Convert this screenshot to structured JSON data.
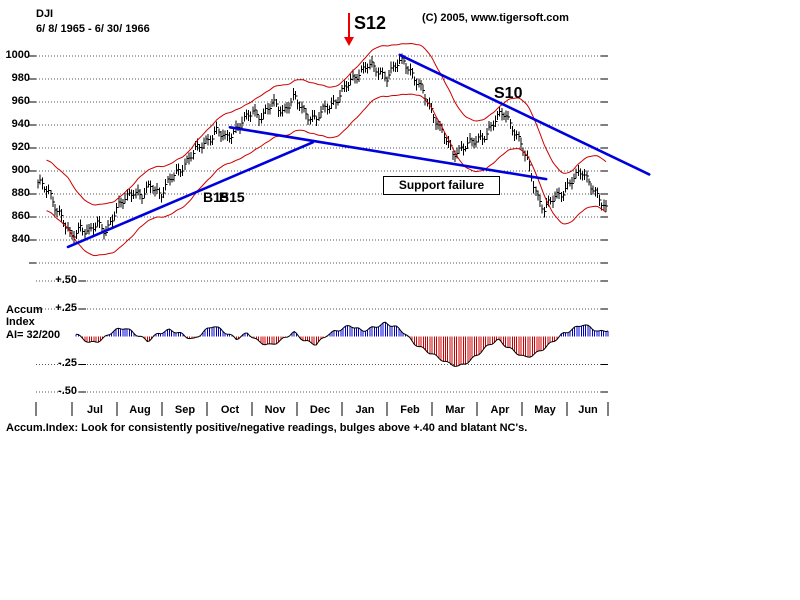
{
  "header": {
    "symbol": "DJI",
    "date_range": "6/ 8/ 1965 - 6/ 30/ 1966",
    "copyright": "(C) 2005, www.tigersoft.com"
  },
  "annotations": {
    "s12": "S12",
    "s10": "S10",
    "b15_first": "B15",
    "b15_second": "B15",
    "support_failure": "Support failure"
  },
  "accum_block": {
    "line1": "Accum",
    "line2": "Index",
    "line3": "AI= 32/200"
  },
  "footer_note": "Accum.Index: Look for consistently positive/negative readings, bulges above +.40 and blatant NC's.",
  "colors": {
    "price": "#000000",
    "bands": "#cc0000",
    "trendline": "#0000dd",
    "accum_positive": "#0000cc",
    "accum_negative": "#cc0000",
    "arrow": "#ee0000",
    "grid": "#555555"
  },
  "chart_data": [
    {
      "name": "price-panel",
      "type": "line",
      "style_note": "Daily OHLC-style vertical bars with red envelope bands and blue hand-drawn trendlines; sell signals S12/S10, buy signals B15, 'Support failure' callout",
      "title": "DJI",
      "period": "6/ 8/ 1965 - 6/ 30/ 1966",
      "ylim": [
        830,
        1007
      ],
      "y_ticks": [
        1000,
        980,
        960,
        940,
        920,
        900,
        880,
        860,
        840
      ],
      "y_tick_labels": [
        "1000",
        "980",
        "960",
        "940",
        "920",
        "900",
        "880",
        "860",
        "840"
      ],
      "grid_values": [
        1000,
        980,
        960,
        940,
        920,
        900,
        880,
        860,
        840,
        820
      ],
      "x_tick_labels": [
        "Jul",
        "Aug",
        "Sep",
        "Oct",
        "Nov",
        "Dec",
        "Jan",
        "Feb",
        "Mar",
        "Apr",
        "May",
        "Jun"
      ],
      "band_halfwidth": 22,
      "anchors": [
        [
          0.0,
          890
        ],
        [
          0.02,
          880
        ],
        [
          0.04,
          862
        ],
        [
          0.058,
          841
        ],
        [
          0.075,
          852
        ],
        [
          0.09,
          847
        ],
        [
          0.105,
          853
        ],
        [
          0.12,
          849
        ],
        [
          0.135,
          863
        ],
        [
          0.152,
          875
        ],
        [
          0.168,
          884
        ],
        [
          0.183,
          877
        ],
        [
          0.2,
          888
        ],
        [
          0.216,
          880
        ],
        [
          0.235,
          893
        ],
        [
          0.255,
          905
        ],
        [
          0.275,
          916
        ],
        [
          0.299,
          928
        ],
        [
          0.315,
          934
        ],
        [
          0.33,
          928
        ],
        [
          0.35,
          938
        ],
        [
          0.365,
          944
        ],
        [
          0.378,
          952
        ],
        [
          0.395,
          948
        ],
        [
          0.413,
          958
        ],
        [
          0.432,
          953
        ],
        [
          0.45,
          963
        ],
        [
          0.47,
          951
        ],
        [
          0.49,
          945
        ],
        [
          0.51,
          956
        ],
        [
          0.525,
          962
        ],
        [
          0.535,
          968
        ],
        [
          0.55,
          977
        ],
        [
          0.565,
          986
        ],
        [
          0.58,
          992
        ],
        [
          0.597,
          987
        ],
        [
          0.614,
          983
        ],
        [
          0.63,
          991
        ],
        [
          0.645,
          996
        ],
        [
          0.66,
          984
        ],
        [
          0.676,
          969
        ],
        [
          0.692,
          954
        ],
        [
          0.71,
          936
        ],
        [
          0.73,
          914
        ],
        [
          0.748,
          922
        ],
        [
          0.771,
          925
        ],
        [
          0.79,
          934
        ],
        [
          0.806,
          944
        ],
        [
          0.822,
          951
        ],
        [
          0.84,
          934
        ],
        [
          0.862,
          908
        ],
        [
          0.88,
          878
        ],
        [
          0.892,
          865
        ],
        [
          0.91,
          878
        ],
        [
          0.928,
          884
        ],
        [
          0.945,
          893
        ],
        [
          0.958,
          901
        ],
        [
          0.972,
          890
        ],
        [
          0.985,
          876
        ],
        [
          1.0,
          867
        ]
      ],
      "trendlines": [
        {
          "name": "rising-support-line",
          "t1": 0.056,
          "p1": 834,
          "t2": 0.484,
          "p2": 925
        },
        {
          "name": "failed-support-line",
          "t1": 0.339,
          "p1": 938,
          "t2": 0.892,
          "p2": 893
        },
        {
          "name": "falling-resistance-line",
          "t1": 0.636,
          "p1": 1001,
          "t2": 1.072,
          "p2": 897
        }
      ]
    },
    {
      "name": "accum-index-panel",
      "type": "area",
      "style_note": "Tiger Accumulation Index oscillator around zero; positive spikes blue, negative bulges red",
      "current_reading": "AI= 32/200",
      "ylim": [
        -0.55,
        0.55
      ],
      "y_ticks": [
        0.5,
        0.25,
        -0.25,
        -0.5
      ],
      "y_tick_labels": [
        "+.50",
        "+.25",
        "-.25",
        "-.50"
      ],
      "anchors": [
        [
          0.07,
          0.02
        ],
        [
          0.095,
          -0.06
        ],
        [
          0.115,
          -0.03
        ],
        [
          0.135,
          0.05
        ],
        [
          0.155,
          0.08
        ],
        [
          0.175,
          0.02
        ],
        [
          0.195,
          -0.04
        ],
        [
          0.215,
          0.03
        ],
        [
          0.235,
          0.06
        ],
        [
          0.255,
          0.02
        ],
        [
          0.275,
          -0.03
        ],
        [
          0.295,
          0.05
        ],
        [
          0.31,
          0.1
        ],
        [
          0.33,
          0.04
        ],
        [
          0.35,
          -0.02
        ],
        [
          0.37,
          0.03
        ],
        [
          0.39,
          -0.05
        ],
        [
          0.41,
          -0.08
        ],
        [
          0.43,
          -0.03
        ],
        [
          0.45,
          0.04
        ],
        [
          0.47,
          -0.04
        ],
        [
          0.49,
          -0.07
        ],
        [
          0.51,
          0.02
        ],
        [
          0.53,
          0.06
        ],
        [
          0.55,
          0.1
        ],
        [
          0.57,
          0.05
        ],
        [
          0.59,
          0.08
        ],
        [
          0.61,
          0.12
        ],
        [
          0.628,
          0.09
        ],
        [
          0.645,
          0.03
        ],
        [
          0.66,
          -0.06
        ],
        [
          0.68,
          -0.12
        ],
        [
          0.7,
          -0.18
        ],
        [
          0.72,
          -0.24
        ],
        [
          0.74,
          -0.27
        ],
        [
          0.758,
          -0.22
        ],
        [
          0.775,
          -0.15
        ],
        [
          0.793,
          -0.07
        ],
        [
          0.808,
          -0.03
        ],
        [
          0.82,
          -0.08
        ],
        [
          0.838,
          -0.14
        ],
        [
          0.855,
          -0.19
        ],
        [
          0.872,
          -0.16
        ],
        [
          0.89,
          -0.1
        ],
        [
          0.905,
          -0.04
        ],
        [
          0.92,
          0.02
        ],
        [
          0.94,
          0.07
        ],
        [
          0.955,
          0.11
        ],
        [
          0.97,
          0.08
        ],
        [
          0.985,
          0.04
        ],
        [
          1.0,
          0.06
        ]
      ]
    }
  ]
}
